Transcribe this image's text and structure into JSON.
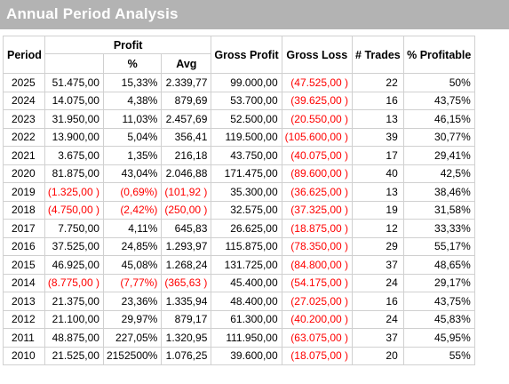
{
  "title": "Annual Period Analysis",
  "headers": {
    "period": "Period",
    "profit": "Profit",
    "pct": "%",
    "avg": "Avg",
    "gross_profit": "Gross Profit",
    "gross_loss": "Gross Loss",
    "trades": "# Trades",
    "pct_profitable": "% Profitable"
  },
  "colors": {
    "negative": "#ff0000",
    "title_bar": "#b3b3b3"
  },
  "rows": [
    {
      "year": "2025",
      "profit": "51.475,00",
      "pct": "15,33%",
      "avg": "2.339,77",
      "gross_profit": "99.000,00",
      "gross_loss": "(47.525,00 )",
      "trades": "22",
      "pct_profitable": "50%",
      "neg": false
    },
    {
      "year": "2024",
      "profit": "14.075,00",
      "pct": "4,38%",
      "avg": "879,69",
      "gross_profit": "53.700,00",
      "gross_loss": "(39.625,00 )",
      "trades": "16",
      "pct_profitable": "43,75%",
      "neg": false
    },
    {
      "year": "2023",
      "profit": "31.950,00",
      "pct": "11,03%",
      "avg": "2.457,69",
      "gross_profit": "52.500,00",
      "gross_loss": "(20.550,00 )",
      "trades": "13",
      "pct_profitable": "46,15%",
      "neg": false
    },
    {
      "year": "2022",
      "profit": "13.900,00",
      "pct": "5,04%",
      "avg": "356,41",
      "gross_profit": "119.500,00",
      "gross_loss": "(105.600,00 )",
      "trades": "39",
      "pct_profitable": "30,77%",
      "neg": false
    },
    {
      "year": "2021",
      "profit": "3.675,00",
      "pct": "1,35%",
      "avg": "216,18",
      "gross_profit": "43.750,00",
      "gross_loss": "(40.075,00 )",
      "trades": "17",
      "pct_profitable": "29,41%",
      "neg": false
    },
    {
      "year": "2020",
      "profit": "81.875,00",
      "pct": "43,04%",
      "avg": "2.046,88",
      "gross_profit": "171.475,00",
      "gross_loss": "(89.600,00 )",
      "trades": "40",
      "pct_profitable": "42,5%",
      "neg": false
    },
    {
      "year": "2019",
      "profit": "(1.325,00 )",
      "pct": "(0,69%)",
      "avg": "(101,92 )",
      "gross_profit": "35.300,00",
      "gross_loss": "(36.625,00 )",
      "trades": "13",
      "pct_profitable": "38,46%",
      "neg": true
    },
    {
      "year": "2018",
      "profit": "(4.750,00 )",
      "pct": "(2,42%)",
      "avg": "(250,00 )",
      "gross_profit": "32.575,00",
      "gross_loss": "(37.325,00 )",
      "trades": "19",
      "pct_profitable": "31,58%",
      "neg": true
    },
    {
      "year": "2017",
      "profit": "7.750,00",
      "pct": "4,11%",
      "avg": "645,83",
      "gross_profit": "26.625,00",
      "gross_loss": "(18.875,00 )",
      "trades": "12",
      "pct_profitable": "33,33%",
      "neg": false
    },
    {
      "year": "2016",
      "profit": "37.525,00",
      "pct": "24,85%",
      "avg": "1.293,97",
      "gross_profit": "115.875,00",
      "gross_loss": "(78.350,00 )",
      "trades": "29",
      "pct_profitable": "55,17%",
      "neg": false
    },
    {
      "year": "2015",
      "profit": "46.925,00",
      "pct": "45,08%",
      "avg": "1.268,24",
      "gross_profit": "131.725,00",
      "gross_loss": "(84.800,00 )",
      "trades": "37",
      "pct_profitable": "48,65%",
      "neg": false
    },
    {
      "year": "2014",
      "profit": "(8.775,00 )",
      "pct": "(7,77%)",
      "avg": "(365,63 )",
      "gross_profit": "45.400,00",
      "gross_loss": "(54.175,00 )",
      "trades": "24",
      "pct_profitable": "29,17%",
      "neg": true
    },
    {
      "year": "2013",
      "profit": "21.375,00",
      "pct": "23,36%",
      "avg": "1.335,94",
      "gross_profit": "48.400,00",
      "gross_loss": "(27.025,00 )",
      "trades": "16",
      "pct_profitable": "43,75%",
      "neg": false
    },
    {
      "year": "2012",
      "profit": "21.100,00",
      "pct": "29,97%",
      "avg": "879,17",
      "gross_profit": "61.300,00",
      "gross_loss": "(40.200,00 )",
      "trades": "24",
      "pct_profitable": "45,83%",
      "neg": false
    },
    {
      "year": "2011",
      "profit": "48.875,00",
      "pct": "227,05%",
      "avg": "1.320,95",
      "gross_profit": "111.950,00",
      "gross_loss": "(63.075,00 )",
      "trades": "37",
      "pct_profitable": "45,95%",
      "neg": false
    },
    {
      "year": "2010",
      "profit": "21.525,00",
      "pct": "2152500%",
      "avg": "1.076,25",
      "gross_profit": "39.600,00",
      "gross_loss": "(18.075,00 )",
      "trades": "20",
      "pct_profitable": "55%",
      "neg": false
    }
  ]
}
